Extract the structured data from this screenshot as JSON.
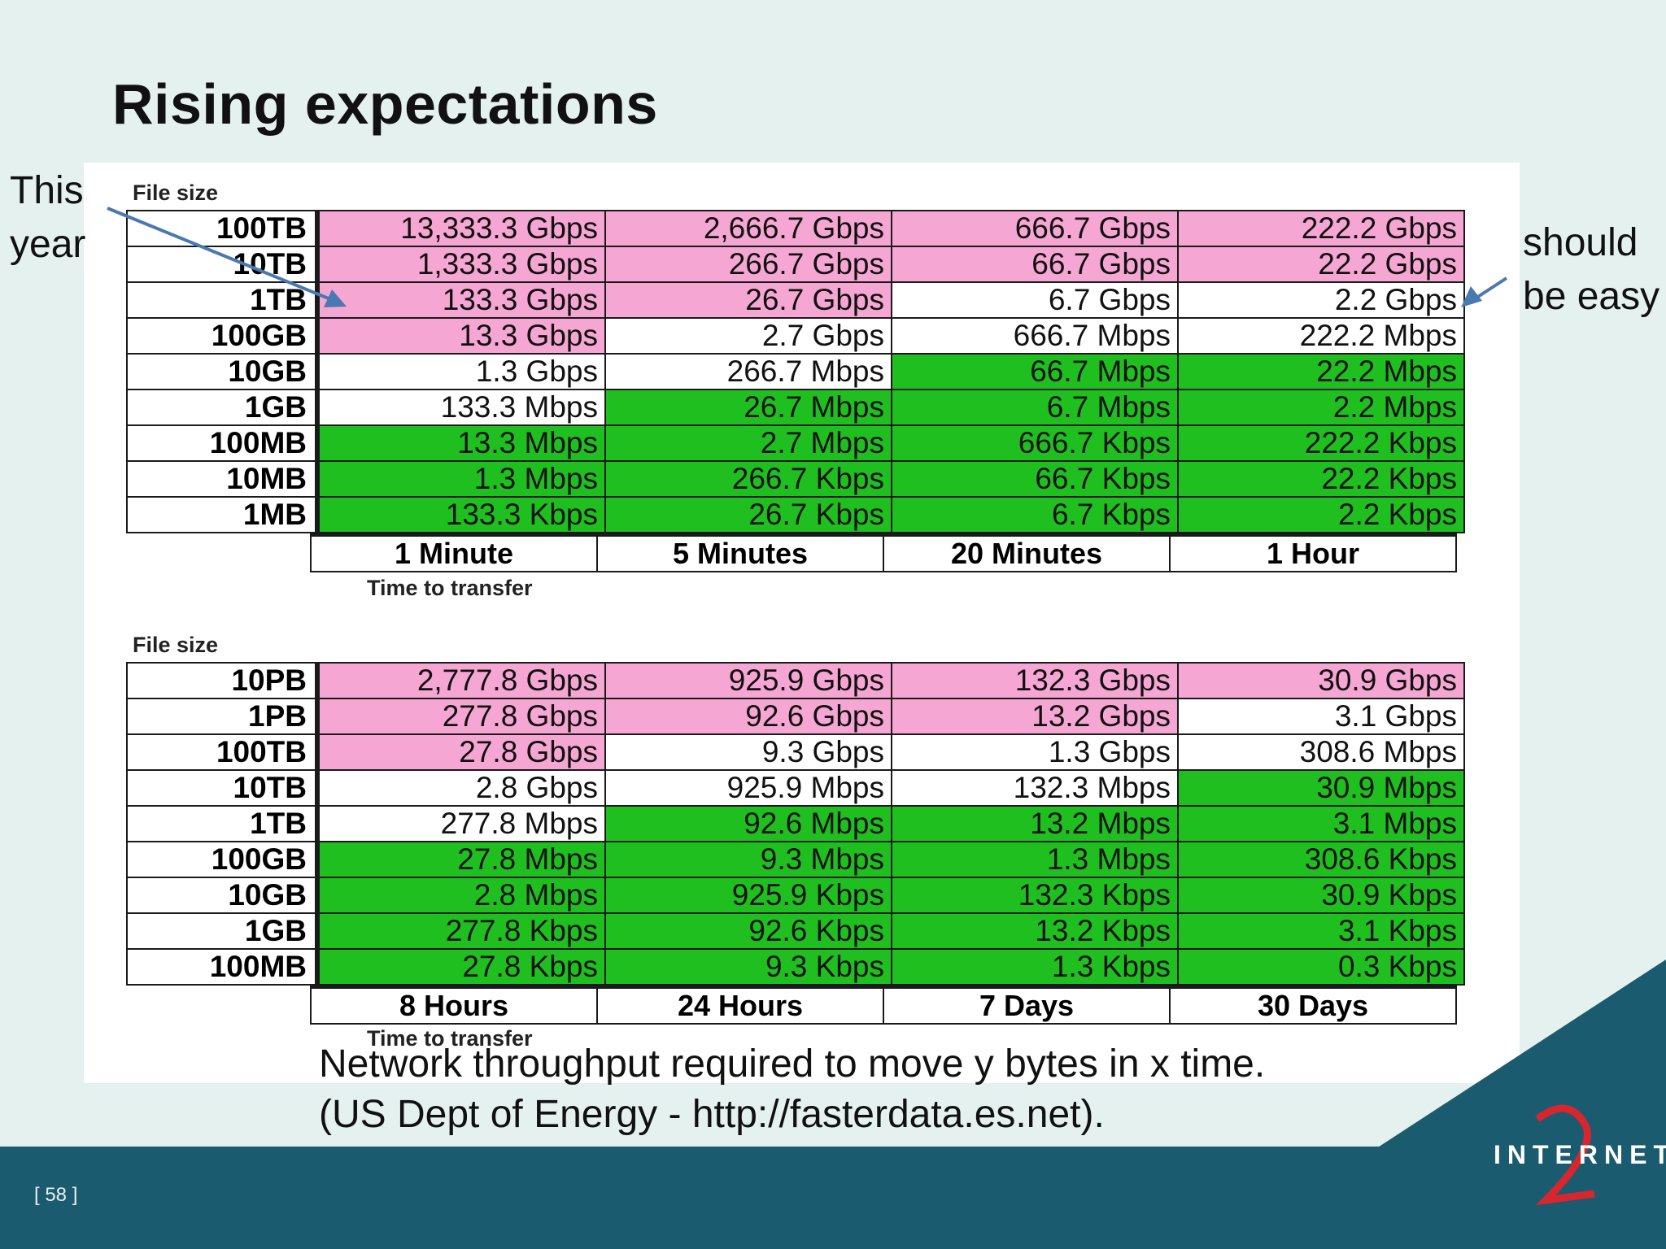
{
  "slide": {
    "title": "Rising expectations",
    "note_left": "This\nyear",
    "note_right": "should\nbe easy",
    "caption": "Network throughput required to move y bytes in x time.\n(US Dept of Energy - http://fasterdata.es.net).",
    "page_number": "[ 58 ]",
    "logo_text": "INTERNET"
  },
  "colors": {
    "pink": "#f6a6d2",
    "green": "#1fbf20",
    "white": "#ffffff",
    "footer": "#1b5b70"
  },
  "chart_data": [
    {
      "type": "table",
      "row_axis_label": "File size",
      "col_axis_label": "Time to transfer",
      "columns": [
        "1 Minute",
        "5 Minutes",
        "20 Minutes",
        "1 Hour"
      ],
      "rows": [
        {
          "size": "100TB",
          "values": [
            "13,333.3 Gbps",
            "2,666.7 Gbps",
            "666.7 Gbps",
            "222.2 Gbps"
          ],
          "colors": [
            "pink",
            "pink",
            "pink",
            "pink"
          ]
        },
        {
          "size": "10TB",
          "values": [
            "1,333.3 Gbps",
            "266.7 Gbps",
            "66.7 Gbps",
            "22.2 Gbps"
          ],
          "colors": [
            "pink",
            "pink",
            "pink",
            "pink"
          ]
        },
        {
          "size": "1TB",
          "values": [
            "133.3 Gbps",
            "26.7 Gbps",
            "6.7 Gbps",
            "2.2 Gbps"
          ],
          "colors": [
            "pink",
            "pink",
            "white",
            "white"
          ]
        },
        {
          "size": "100GB",
          "values": [
            "13.3 Gbps",
            "2.7 Gbps",
            "666.7 Mbps",
            "222.2 Mbps"
          ],
          "colors": [
            "pink",
            "white",
            "white",
            "white"
          ]
        },
        {
          "size": "10GB",
          "values": [
            "1.3 Gbps",
            "266.7 Mbps",
            "66.7 Mbps",
            "22.2 Mbps"
          ],
          "colors": [
            "white",
            "white",
            "green",
            "green"
          ]
        },
        {
          "size": "1GB",
          "values": [
            "133.3 Mbps",
            "26.7 Mbps",
            "6.7 Mbps",
            "2.2 Mbps"
          ],
          "colors": [
            "white",
            "green",
            "green",
            "green"
          ]
        },
        {
          "size": "100MB",
          "values": [
            "13.3 Mbps",
            "2.7 Mbps",
            "666.7 Kbps",
            "222.2 Kbps"
          ],
          "colors": [
            "green",
            "green",
            "green",
            "green"
          ]
        },
        {
          "size": "10MB",
          "values": [
            "1.3 Mbps",
            "266.7 Kbps",
            "66.7 Kbps",
            "22.2 Kbps"
          ],
          "colors": [
            "green",
            "green",
            "green",
            "green"
          ]
        },
        {
          "size": "1MB",
          "values": [
            "133.3 Kbps",
            "26.7 Kbps",
            "6.7 Kbps",
            "2.2 Kbps"
          ],
          "colors": [
            "green",
            "green",
            "green",
            "green"
          ]
        }
      ]
    },
    {
      "type": "table",
      "row_axis_label": "File size",
      "col_axis_label": "Time to transfer",
      "columns": [
        "8 Hours",
        "24 Hours",
        "7 Days",
        "30 Days"
      ],
      "rows": [
        {
          "size": "10PB",
          "values": [
            "2,777.8 Gbps",
            "925.9 Gbps",
            "132.3 Gbps",
            "30.9 Gbps"
          ],
          "colors": [
            "pink",
            "pink",
            "pink",
            "pink"
          ]
        },
        {
          "size": "1PB",
          "values": [
            "277.8 Gbps",
            "92.6 Gbps",
            "13.2 Gbps",
            "3.1 Gbps"
          ],
          "colors": [
            "pink",
            "pink",
            "pink",
            "white"
          ]
        },
        {
          "size": "100TB",
          "values": [
            "27.8 Gbps",
            "9.3 Gbps",
            "1.3 Gbps",
            "308.6 Mbps"
          ],
          "colors": [
            "pink",
            "white",
            "white",
            "white"
          ]
        },
        {
          "size": "10TB",
          "values": [
            "2.8 Gbps",
            "925.9 Mbps",
            "132.3 Mbps",
            "30.9 Mbps"
          ],
          "colors": [
            "white",
            "white",
            "white",
            "green"
          ]
        },
        {
          "size": "1TB",
          "values": [
            "277.8 Mbps",
            "92.6 Mbps",
            "13.2 Mbps",
            "3.1 Mbps"
          ],
          "colors": [
            "white",
            "green",
            "green",
            "green"
          ]
        },
        {
          "size": "100GB",
          "values": [
            "27.8 Mbps",
            "9.3 Mbps",
            "1.3 Mbps",
            "308.6 Kbps"
          ],
          "colors": [
            "green",
            "green",
            "green",
            "green"
          ]
        },
        {
          "size": "10GB",
          "values": [
            "2.8 Mbps",
            "925.9 Kbps",
            "132.3 Kbps",
            "30.9 Kbps"
          ],
          "colors": [
            "green",
            "green",
            "green",
            "green"
          ]
        },
        {
          "size": "1GB",
          "values": [
            "277.8 Kbps",
            "92.6 Kbps",
            "13.2 Kbps",
            "3.1 Kbps"
          ],
          "colors": [
            "green",
            "green",
            "green",
            "green"
          ]
        },
        {
          "size": "100MB",
          "values": [
            "27.8 Kbps",
            "9.3 Kbps",
            "1.3 Kbps",
            "0.3 Kbps"
          ],
          "colors": [
            "green",
            "green",
            "green",
            "green"
          ]
        }
      ]
    }
  ]
}
